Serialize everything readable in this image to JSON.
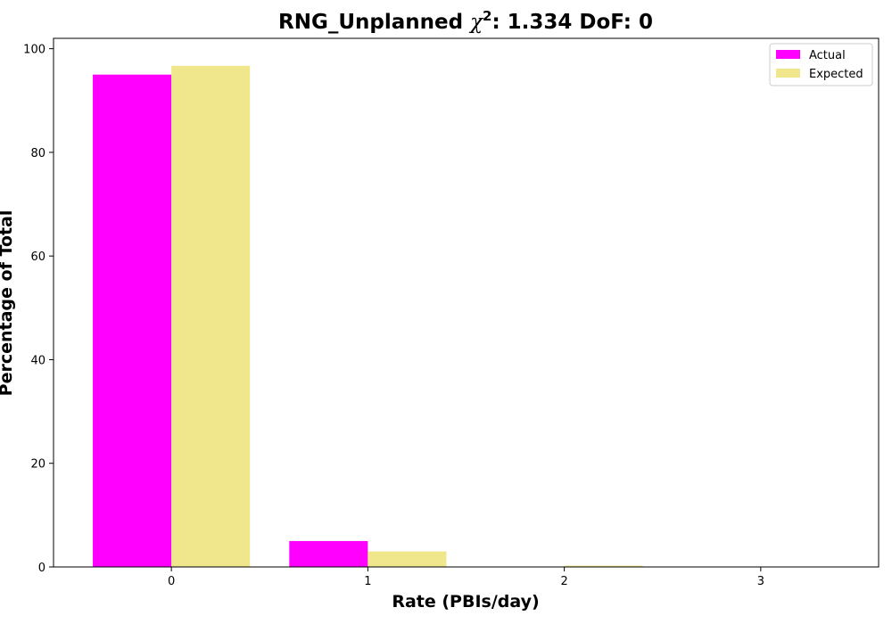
{
  "chart_data": {
    "type": "bar",
    "title_prefix": "RNG_Unplanned ",
    "title_symbol": "χ",
    "title_exponent": "2",
    "title_suffix": ": 1.334 DoF: 0",
    "xlabel": "Rate (PBIs/day)",
    "ylabel": "Percentage of Total",
    "categories": [
      "0",
      "1",
      "2",
      "3"
    ],
    "x": [
      0,
      1,
      2,
      3
    ],
    "series": [
      {
        "name": "Actual",
        "values": [
          95.0,
          5.0,
          0.0,
          0.0
        ],
        "color": "#ff00ff"
      },
      {
        "name": "Expected",
        "values": [
          96.7,
          3.0,
          0.25,
          0.0
        ],
        "color": "#f0e68c"
      }
    ],
    "xlim": [
      -0.6,
      3.6
    ],
    "ylim": [
      0,
      102
    ],
    "yticks": [
      0,
      20,
      40,
      60,
      80,
      100
    ],
    "grid": false,
    "legend_position": "top-right"
  }
}
